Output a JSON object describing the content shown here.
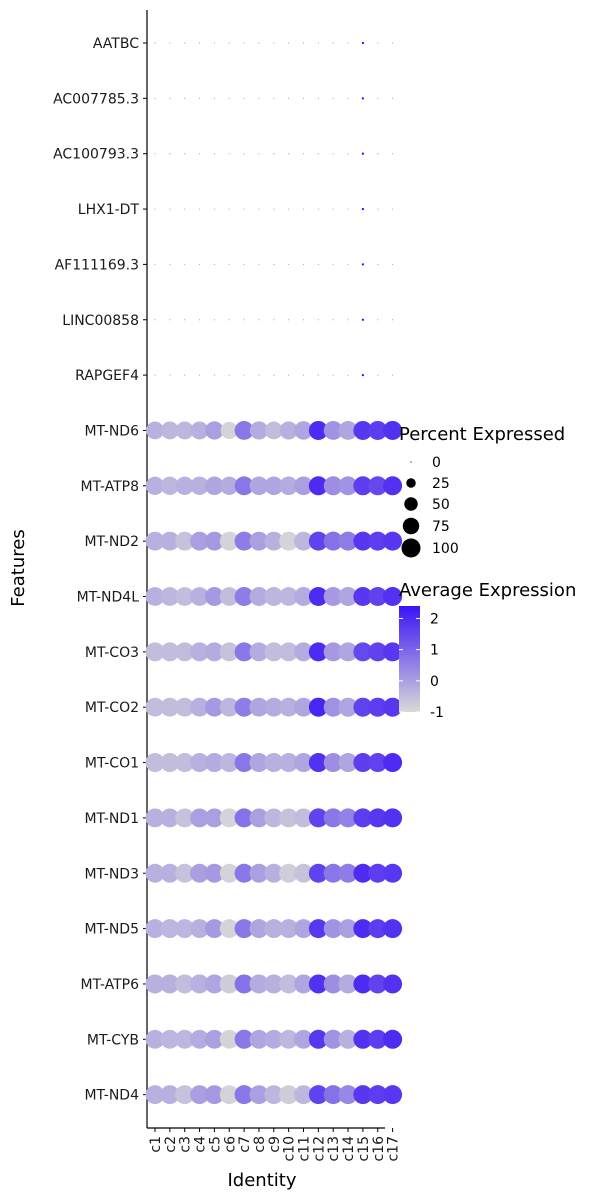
{
  "chart_data": {
    "type": "dotplot",
    "xlabel": "Identity",
    "ylabel": "Features",
    "categories": [
      "c1",
      "c2",
      "c3",
      "c4",
      "c5",
      "c6",
      "c7",
      "c8",
      "c9",
      "c10",
      "c11",
      "c12",
      "c13",
      "c14",
      "c15",
      "c16",
      "c17"
    ],
    "features": [
      "AATBC",
      "AC007785.3",
      "AC100793.3",
      "LHX1-DT",
      "AF111169.3",
      "LINC00858",
      "RAPGEF4",
      "MT-ND6",
      "MT-ATP8",
      "MT-ND2",
      "MT-ND4L",
      "MT-CO3",
      "MT-CO2",
      "MT-CO1",
      "MT-ND1",
      "MT-ND3",
      "MT-ND5",
      "MT-ATP6",
      "MT-CYB",
      "MT-ND4"
    ],
    "avg_expression": {
      "AATBC": [
        -0.1,
        -0.1,
        -0.1,
        -0.1,
        -0.1,
        -0.1,
        -0.1,
        -0.1,
        -0.1,
        -0.1,
        -0.1,
        -0.1,
        -0.1,
        -0.1,
        4.0,
        -0.1,
        -0.1
      ],
      "AC007785.3": [
        -0.1,
        -0.1,
        -0.1,
        -0.1,
        -0.1,
        -0.1,
        -0.1,
        -0.1,
        -0.1,
        -0.1,
        -0.1,
        -0.1,
        -0.1,
        -0.1,
        4.0,
        -0.1,
        -0.1
      ],
      "AC100793.3": [
        -0.1,
        -0.1,
        -0.1,
        -0.1,
        -0.1,
        -0.1,
        -0.1,
        -0.1,
        -0.1,
        -0.1,
        -0.1,
        -0.1,
        -0.1,
        -0.1,
        4.0,
        -0.1,
        -0.1
      ],
      "LHX1-DT": [
        -0.1,
        -0.1,
        -0.1,
        -0.1,
        -0.1,
        -0.1,
        -0.1,
        -0.1,
        -0.1,
        -0.1,
        -0.1,
        -0.1,
        -0.1,
        -0.1,
        4.0,
        -0.1,
        -0.1
      ],
      "AF111169.3": [
        -0.1,
        -0.1,
        -0.1,
        -0.1,
        -0.1,
        -0.1,
        -0.1,
        -0.1,
        -0.1,
        -0.1,
        -0.1,
        -0.1,
        -0.1,
        -0.1,
        4.0,
        -0.1,
        -0.1
      ],
      "LINC00858": [
        -0.1,
        -0.1,
        -0.1,
        -0.1,
        -0.1,
        -0.1,
        -0.1,
        -0.1,
        -0.1,
        -0.1,
        -0.1,
        -0.1,
        -0.1,
        -0.1,
        4.0,
        -0.1,
        -0.1
      ],
      "RAPGEF4": [
        -0.1,
        -0.1,
        -0.1,
        -0.1,
        -0.1,
        -0.1,
        -0.1,
        -0.1,
        -0.1,
        -0.1,
        -0.1,
        -0.1,
        -0.1,
        -0.1,
        4.0,
        -0.1,
        -0.1
      ],
      "MT-ND6": [
        -0.3,
        -0.4,
        -0.4,
        -0.3,
        0.0,
        -0.9,
        0.7,
        -0.2,
        -0.5,
        -0.3,
        -0.1,
        2.0,
        0.2,
        -0.1,
        1.8,
        1.7,
        1.9
      ],
      "MT-ATP8": [
        -0.3,
        -0.4,
        -0.3,
        -0.3,
        -0.1,
        -0.2,
        0.7,
        -0.1,
        -0.1,
        -0.2,
        0.0,
        2.0,
        0.3,
        0.2,
        1.7,
        1.5,
        1.9
      ],
      "MT-ND2": [
        -0.3,
        -0.3,
        -0.6,
        0.0,
        0.1,
        -0.9,
        0.6,
        0.0,
        -0.3,
        -0.9,
        -0.4,
        1.6,
        0.8,
        0.6,
        1.8,
        1.7,
        1.8
      ],
      "MT-ND4L": [
        -0.3,
        -0.4,
        -0.5,
        -0.3,
        0.1,
        -0.5,
        0.6,
        -0.2,
        -0.4,
        -0.4,
        -0.2,
        2.0,
        0.1,
        -0.1,
        1.8,
        1.6,
        1.9
      ],
      "MT-CO3": [
        -0.5,
        -0.5,
        -0.5,
        -0.3,
        -0.2,
        -0.6,
        0.7,
        -0.2,
        -0.5,
        -0.5,
        -0.2,
        2.0,
        0.1,
        -0.1,
        1.5,
        1.6,
        1.8
      ],
      "MT-CO2": [
        -0.5,
        -0.5,
        -0.5,
        -0.3,
        0.1,
        -0.4,
        0.6,
        -0.1,
        -0.2,
        -0.3,
        -0.1,
        2.1,
        0.2,
        -0.1,
        1.6,
        1.7,
        1.8
      ],
      "MT-CO1": [
        -0.5,
        -0.5,
        -0.5,
        -0.3,
        -0.2,
        -0.4,
        0.7,
        -0.1,
        -0.3,
        -0.3,
        -0.1,
        1.9,
        0.3,
        -0.1,
        1.7,
        1.6,
        2.0
      ],
      "MT-ND1": [
        -0.3,
        -0.3,
        -0.6,
        0.0,
        0.0,
        -0.9,
        0.8,
        0.0,
        -0.4,
        -0.6,
        -0.5,
        1.6,
        0.7,
        0.5,
        1.7,
        1.8,
        1.9
      ],
      "MT-ND3": [
        -0.3,
        -0.3,
        -0.6,
        0.0,
        0.1,
        -0.9,
        0.7,
        0.0,
        -0.3,
        -0.8,
        -0.6,
        1.6,
        0.7,
        0.6,
        2.0,
        1.7,
        1.8
      ],
      "MT-ND5": [
        -0.3,
        -0.4,
        -0.4,
        -0.3,
        0.1,
        -0.9,
        0.7,
        -0.1,
        -0.3,
        -0.3,
        -0.1,
        1.8,
        0.2,
        0.0,
        2.0,
        1.7,
        1.9
      ],
      "MT-ATP6": [
        -0.3,
        -0.3,
        -0.5,
        -0.3,
        -0.1,
        -0.8,
        0.8,
        -0.2,
        -0.3,
        -0.5,
        -0.1,
        1.9,
        0.3,
        -0.2,
        2.0,
        1.6,
        1.9
      ],
      "MT-CYB": [
        -0.3,
        -0.4,
        -0.4,
        -0.2,
        0.0,
        -0.9,
        0.7,
        -0.1,
        -0.2,
        -0.4,
        -0.1,
        1.8,
        0.2,
        -0.3,
        1.9,
        1.7,
        2.0
      ],
      "MT-ND4": [
        -0.3,
        -0.3,
        -0.6,
        0.0,
        0.1,
        -0.9,
        0.7,
        0.0,
        -0.4,
        -0.8,
        -0.4,
        1.6,
        0.8,
        0.4,
        1.8,
        1.7,
        1.8
      ]
    },
    "percent_expressed": {
      "AATBC": [
        0.4,
        0.4,
        0.4,
        0.4,
        0.4,
        0.4,
        0.4,
        0.4,
        0.4,
        0.4,
        0.4,
        0.4,
        0.4,
        0.4,
        1.5,
        0.4,
        0.4
      ],
      "AC007785.3": [
        0.4,
        0.4,
        0.4,
        0.4,
        0.4,
        0.4,
        0.4,
        0.4,
        0.4,
        0.4,
        0.4,
        0.4,
        0.4,
        0.4,
        1.5,
        0.4,
        0.4
      ],
      "AC100793.3": [
        0.4,
        0.4,
        0.4,
        0.4,
        0.4,
        0.4,
        0.4,
        0.4,
        0.4,
        0.4,
        0.4,
        0.4,
        0.4,
        0.4,
        1.5,
        0.4,
        0.4
      ],
      "LHX1-DT": [
        0.4,
        0.4,
        0.4,
        0.4,
        0.4,
        0.4,
        0.4,
        0.4,
        0.4,
        0.4,
        0.4,
        0.4,
        0.4,
        0.4,
        1.5,
        0.4,
        0.4
      ],
      "AF111169.3": [
        0.4,
        0.4,
        0.4,
        0.4,
        0.4,
        0.4,
        0.4,
        0.4,
        0.4,
        0.4,
        0.4,
        0.4,
        0.4,
        0.4,
        1.5,
        0.4,
        0.4
      ],
      "LINC00858": [
        0.4,
        0.4,
        0.4,
        0.4,
        0.4,
        0.4,
        0.4,
        0.4,
        0.4,
        0.4,
        0.4,
        0.4,
        0.4,
        0.4,
        1.5,
        0.4,
        0.4
      ],
      "RAPGEF4": [
        0.4,
        0.4,
        0.4,
        0.4,
        0.4,
        0.4,
        0.4,
        0.4,
        0.4,
        0.4,
        0.4,
        0.4,
        0.4,
        0.4,
        1.5,
        0.4,
        0.4
      ],
      "MT-ND6": [
        88,
        89,
        89,
        90,
        93,
        82,
        99,
        92,
        88,
        91,
        95,
        100,
        99,
        98,
        100,
        100,
        100
      ],
      "MT-ATP8": [
        93,
        93,
        93,
        94,
        95,
        93,
        99,
        96,
        96,
        95,
        97,
        100,
        100,
        99,
        100,
        100,
        100
      ],
      "MT-ND2": [
        99,
        99,
        99,
        99,
        99,
        99,
        100,
        99,
        99,
        99,
        99,
        100,
        100,
        100,
        100,
        100,
        100
      ],
      "MT-ND4L": [
        98,
        98,
        98,
        98,
        99,
        98,
        100,
        99,
        99,
        98,
        99,
        100,
        100,
        100,
        100,
        100,
        100
      ],
      "MT-CO3": [
        99,
        99,
        99,
        99,
        99,
        99,
        100,
        99,
        99,
        99,
        99,
        100,
        100,
        100,
        100,
        100,
        100
      ],
      "MT-CO2": [
        99,
        99,
        99,
        99,
        99,
        99,
        100,
        99,
        99,
        99,
        99,
        100,
        100,
        100,
        100,
        100,
        100
      ],
      "MT-CO1": [
        100,
        100,
        100,
        100,
        100,
        100,
        100,
        100,
        100,
        100,
        100,
        100,
        100,
        100,
        100,
        100,
        100
      ],
      "MT-ND1": [
        99,
        99,
        99,
        99,
        99,
        99,
        100,
        99,
        99,
        99,
        99,
        100,
        100,
        100,
        100,
        100,
        100
      ],
      "MT-ND3": [
        99,
        99,
        99,
        99,
        99,
        99,
        100,
        99,
        99,
        99,
        99,
        100,
        100,
        100,
        100,
        100,
        100
      ],
      "MT-ND5": [
        99,
        99,
        99,
        99,
        99,
        99,
        100,
        99,
        99,
        99,
        99,
        100,
        100,
        100,
        100,
        100,
        100
      ],
      "MT-ATP6": [
        100,
        100,
        100,
        100,
        100,
        100,
        100,
        100,
        100,
        100,
        100,
        100,
        100,
        100,
        100,
        100,
        100
      ],
      "MT-CYB": [
        99,
        99,
        99,
        99,
        99,
        99,
        100,
        99,
        99,
        99,
        99,
        100,
        100,
        100,
        100,
        100,
        100
      ],
      "MT-ND4": [
        99,
        99,
        99,
        99,
        99,
        99,
        100,
        99,
        99,
        99,
        99,
        100,
        100,
        100,
        100,
        100,
        100
      ]
    },
    "size_legend": {
      "title": "Percent Expressed",
      "values": [
        0,
        25,
        50,
        75,
        100
      ],
      "labels": [
        "0",
        "25",
        "50",
        "75",
        "100"
      ]
    },
    "color_legend": {
      "title": "Average Expression",
      "ticks": [
        2,
        1,
        0,
        -1
      ],
      "labels": [
        "2",
        "1",
        "0",
        "-1"
      ],
      "low_color": "#d9d9d9",
      "high_color": "#3b14f5",
      "range": [
        -1,
        2.4
      ]
    },
    "grid": false,
    "legend_position": "right"
  }
}
